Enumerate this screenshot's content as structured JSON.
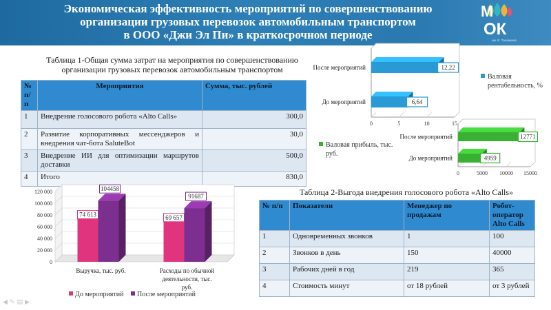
{
  "header": {
    "title_lines": [
      "Экономическая эффективность мероприятий по совершенствованию",
      "организации грузовых перевозок автомобильным транспортом",
      "в  ООО «Джи Эл Пи» в краткосрочном периоде"
    ],
    "logo_letters": [
      "М",
      "ОК"
    ],
    "logo_caption": "им. В. Таланкина",
    "logo_colors": [
      "#8fd14f",
      "#2fb7c9",
      "#f2b233",
      "#e8507a"
    ]
  },
  "table1": {
    "caption": "Таблица 1-Общая сумма затрат на мероприятия по совершенствованию организации грузовых перевозок автомобильным транспортом",
    "headers": [
      "№ п/п",
      "Мероприятия",
      "Сумма, тыс. рублей"
    ],
    "rows": [
      [
        "1",
        "Внедрение голосового робота «Alto Calls»",
        "300,0"
      ],
      [
        "2",
        "Развитие корпоративных мессенджеров и внедрения чат-бота SaluteBot",
        "30,0"
      ],
      [
        "3",
        "Внедрение ИИ для оптимизации маршрутов доставки",
        "500,0"
      ],
      [
        "4",
        "Итого",
        "830,0"
      ]
    ]
  },
  "table2": {
    "caption": "Таблица 2-Выгода внедрения голосового робота «Alto Calls»",
    "headers": [
      "№ п/п",
      "Показатели",
      "Менеджер по продажам",
      "Робот-оператор Alto Calls"
    ],
    "rows": [
      [
        "1",
        "Одновременных звонков",
        "1",
        "100"
      ],
      [
        "2",
        "Звонков в день",
        "150",
        "40000"
      ],
      [
        "3",
        "Рабочих дней в год",
        "219",
        "365"
      ],
      [
        "4",
        "Стоимость минут",
        "от 18 рублей",
        "от 3 рублей"
      ]
    ]
  },
  "nav_icons": [
    "arrow-left-icon",
    "pencil-icon",
    "menu-icon",
    "arrow-right-icon"
  ],
  "chart_data": [
    {
      "type": "bar",
      "orientation": "horizontal",
      "categories": [
        "После мероприятий",
        "До мероприятий"
      ],
      "series": [
        {
          "name": "Валовая рентабельность, %",
          "values": [
            12.22,
            6.64
          ],
          "labels": [
            "12,22",
            "6,64"
          ],
          "color": "#2a9ad6"
        }
      ],
      "x_ticks": [
        "0",
        "5",
        "10",
        "15"
      ],
      "xlim": [
        0,
        15
      ],
      "legend": "right"
    },
    {
      "type": "bar",
      "orientation": "horizontal",
      "categories": [
        "После мероприятий",
        "До мероприятий"
      ],
      "series": [
        {
          "name": "Валовая прибыль, тыс. руб.",
          "values": [
            12771,
            4959
          ],
          "labels": [
            "12771",
            "4959"
          ],
          "color": "#3ab033"
        }
      ],
      "x_ticks": [
        "0",
        "5000",
        "10000",
        "15000"
      ],
      "xlim": [
        0,
        15000
      ],
      "legend": "left"
    },
    {
      "type": "bar",
      "orientation": "vertical",
      "categories": [
        "Выручка, тыс. руб.",
        "Расходы по обычной деятельности, тыс. руб."
      ],
      "series": [
        {
          "name": "До мероприятий",
          "values": [
            74613,
            69657
          ],
          "labels": [
            "74 613",
            "69 657"
          ],
          "color": "#e0357e"
        },
        {
          "name": "После мероприятий",
          "values": [
            104458,
            91687
          ],
          "labels": [
            "104458",
            "91687"
          ],
          "color": "#7d2f8f"
        }
      ],
      "y_ticks": [
        "0",
        "20 000",
        "40 000",
        "60 000",
        "80 000",
        "100 000",
        "120 000"
      ],
      "ylim": [
        0,
        120000
      ],
      "legend": "bottom"
    }
  ]
}
